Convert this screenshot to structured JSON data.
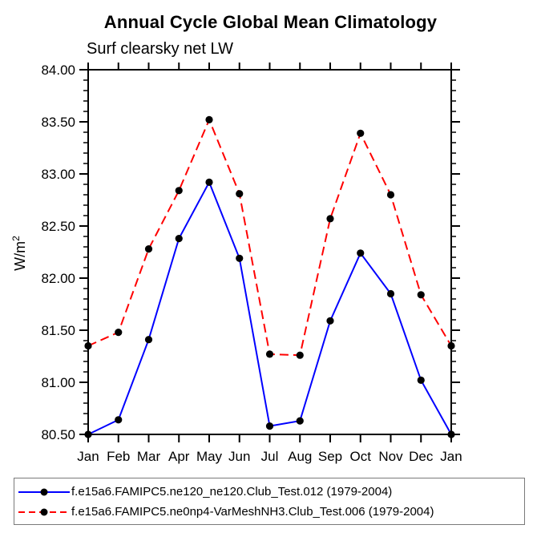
{
  "page": {
    "background": "#ffffff"
  },
  "chart_data": {
    "type": "line",
    "title": "Annual Cycle Global Mean Climatology",
    "subtitle": "Surf clearsky net LW",
    "xlabel": "",
    "ylabel": "W/m²",
    "ylabel_base": "W/m",
    "ylabel_exp": "2",
    "categories": [
      "Jan",
      "Feb",
      "Mar",
      "Apr",
      "May",
      "Jun",
      "Jul",
      "Aug",
      "Sep",
      "Oct",
      "Nov",
      "Dec",
      "Jan"
    ],
    "ylim": [
      80.5,
      84.0
    ],
    "ytick_step": 0.5,
    "yminor_step": 0.1,
    "ytick_labels": [
      "84.00",
      "83.50",
      "83.00",
      "82.50",
      "82.00",
      "81.50",
      "81.00",
      "80.50"
    ],
    "grid": false,
    "legend_position": "bottom",
    "axis_color": "#000000",
    "marker_shape": "filled-circle",
    "series": [
      {
        "name": "f.e15a6.FAMIPC5.ne120_ne120.Club_Test.012",
        "legend": "f.e15a6.FAMIPC5.ne120_ne120.Club_Test.012 (1979-2004)",
        "color": "#0000ff",
        "line_style": "solid",
        "marker_color": "#000000",
        "values": [
          80.5,
          80.64,
          81.41,
          82.38,
          82.92,
          82.19,
          80.58,
          80.63,
          81.59,
          82.24,
          81.85,
          81.02,
          80.5
        ]
      },
      {
        "name": "f.e15a6.FAMIPC5.ne0np4-VarMeshNH3.Club_Test.006",
        "legend": "f.e15a6.FAMIPC5.ne0np4-VarMeshNH3.Club_Test.006 (1979-2004)",
        "color": "#ff0000",
        "line_style": "dashed",
        "marker_color": "#000000",
        "values": [
          81.35,
          81.48,
          82.28,
          82.84,
          83.52,
          82.81,
          81.27,
          81.26,
          82.57,
          83.39,
          82.8,
          81.84,
          81.35
        ]
      }
    ]
  }
}
